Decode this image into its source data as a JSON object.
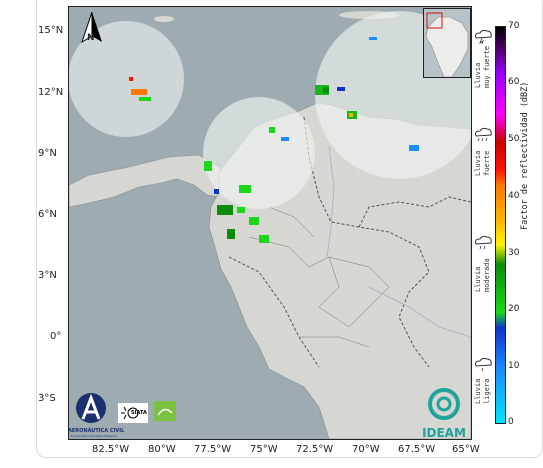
{
  "map": {
    "latitude_ticks": [
      "15°N",
      "12°N",
      "9°N",
      "6°N",
      "3°N",
      "0°",
      "3°S"
    ],
    "longitude_ticks": [
      "82.5°W",
      "80°W",
      "77.5°W",
      "75°W",
      "72.5°W",
      "70°W",
      "67.5°W",
      "65°W"
    ],
    "north_arrow_label": "N",
    "colors": {
      "sea": "#9eacb1",
      "land": "#d6d6d2",
      "radar_coverage": "#eef2f0"
    }
  },
  "colorbar": {
    "ticks": [
      "70",
      "60",
      "50",
      "40",
      "30",
      "20",
      "10",
      "0"
    ],
    "label": "Factor de reflectividad (dBZ)"
  },
  "legend": {
    "categories": [
      {
        "label": "Lluvia muy fuerte",
        "line1": "Lluvia",
        "line2": "muy fuerte"
      },
      {
        "label": "Lluvia fuerte",
        "line1": "Lluvia",
        "line2": "fuerte"
      },
      {
        "label": "Lluvia moderada",
        "line1": "Lluvia",
        "line2": "moderada"
      },
      {
        "label": "Lluvia ligera",
        "line1": "Lluvia",
        "line2": "ligera"
      }
    ]
  },
  "logos": {
    "aerocivil_name": "AERONÁUTICA CIVIL",
    "aerocivil_sub": "Unidad Administrativa Especial",
    "siata": "SIATA",
    "ideam": "IDEAM"
  }
}
